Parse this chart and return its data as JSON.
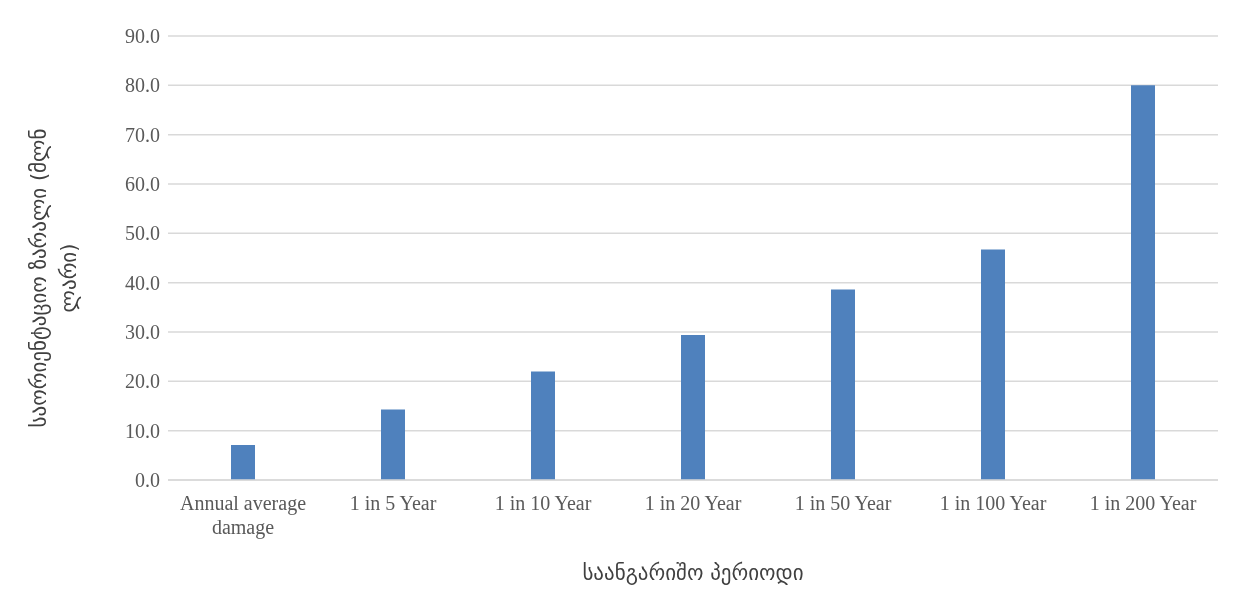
{
  "chart_data": {
    "type": "bar",
    "xlabel": "საანგარიშო პერიოდი",
    "ylabel": "საორიენტაციო ზარალი (მლნ ლარი)",
    "categories": [
      "Annual average damage",
      "1 in 5 Year",
      "1 in 10 Year",
      "1 in 20 Year",
      "1 in 50 Year",
      "1 in 100 Year",
      "1 in 200 Year"
    ],
    "values": [
      7.1,
      14.3,
      22.0,
      29.4,
      38.6,
      46.7,
      80.0
    ],
    "color": "#4f81bd",
    "ylim": [
      0,
      90
    ],
    "yticks": [
      {
        "value": 0,
        "label": "0.0"
      },
      {
        "value": 10,
        "label": "10.0"
      },
      {
        "value": 20,
        "label": "20.0"
      },
      {
        "value": 30,
        "label": "30.0"
      },
      {
        "value": 40,
        "label": "40.0"
      },
      {
        "value": 50,
        "label": "50.0"
      },
      {
        "value": 60,
        "label": "60.0"
      },
      {
        "value": 70,
        "label": "70.0"
      },
      {
        "value": 80,
        "label": "80.0"
      },
      {
        "value": 90,
        "label": "90.0"
      }
    ],
    "grid": "y"
  }
}
